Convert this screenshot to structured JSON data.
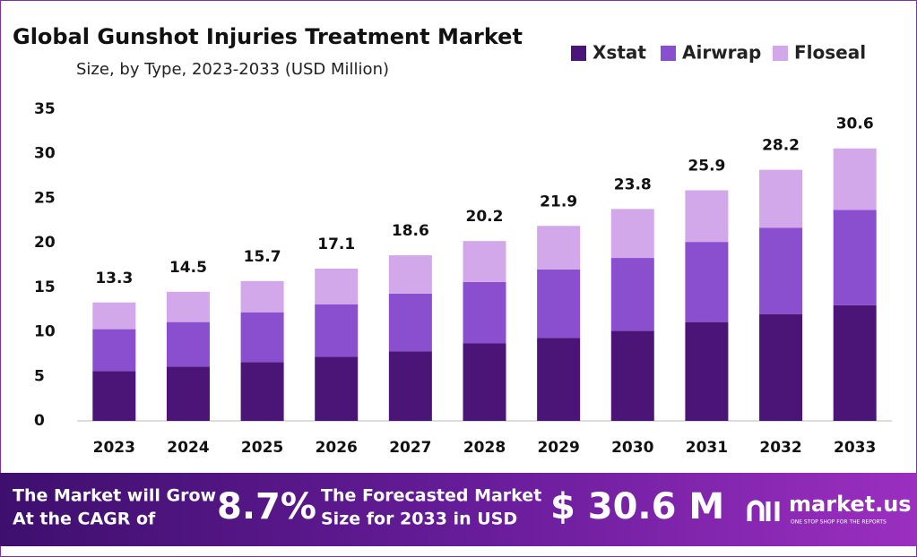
{
  "chart_data": {
    "type": "stacked_bar",
    "title": "Global Gunshot Injuries Treatment Market",
    "subtitle": "Size, by Type, 2023-2033 (USD Million)",
    "categories": [
      "2023",
      "2024",
      "2025",
      "2026",
      "2027",
      "2028",
      "2029",
      "2030",
      "2031",
      "2032",
      "2033"
    ],
    "series": [
      {
        "name": "Xstat",
        "color": "#4a1577",
        "values": [
          5.6,
          6.1,
          6.6,
          7.2,
          7.8,
          8.7,
          9.3,
          10.1,
          11.1,
          12.0,
          13.0
        ]
      },
      {
        "name": "Airwrap",
        "color": "#8a4fcf",
        "values": [
          4.7,
          5.0,
          5.6,
          5.9,
          6.5,
          6.9,
          7.7,
          8.2,
          9.0,
          9.7,
          10.7
        ]
      },
      {
        "name": "Floseal",
        "color": "#d3a8ea",
        "values": [
          3.0,
          3.4,
          3.5,
          4.0,
          4.3,
          4.6,
          4.9,
          5.5,
          5.8,
          6.5,
          6.9
        ]
      }
    ],
    "totals": [
      13.3,
      14.5,
      15.7,
      17.1,
      18.6,
      20.2,
      21.9,
      23.8,
      25.9,
      28.2,
      30.6
    ],
    "ylim": [
      0,
      35
    ],
    "yticks": [
      0,
      5,
      10,
      15,
      20,
      25,
      30,
      35
    ],
    "legend": "top-right"
  },
  "footer": {
    "cagr_text": [
      "The Market will Grow",
      "At the CAGR of"
    ],
    "cagr": "8.7%",
    "forecast_text": [
      "The Forecasted Market",
      "Size for 2033 in USD"
    ],
    "forecast": "$ 30.6 M",
    "brand": "market.us",
    "tagline": "ONE STOP SHOP FOR THE REPORTS"
  }
}
